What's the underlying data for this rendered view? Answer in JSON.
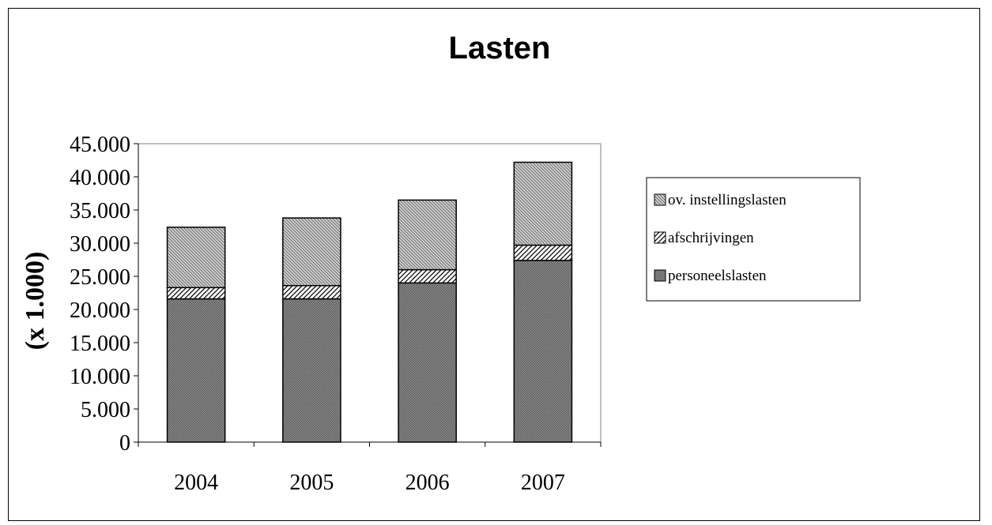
{
  "chart_data": {
    "type": "bar",
    "stacked": true,
    "title": "Lasten",
    "xlabel": "",
    "ylabel": "(x 1.000)",
    "categories": [
      "2004",
      "2005",
      "2006",
      "2007"
    ],
    "series": [
      {
        "name": "personeelslasten",
        "values": [
          21600,
          21600,
          24000,
          27400
        ],
        "color": "#808080"
      },
      {
        "name": "afschrijvingen",
        "values": [
          1700,
          2000,
          2000,
          2300
        ],
        "color": "#c0c0c0"
      },
      {
        "name": "ov. instellingslasten",
        "values": [
          9100,
          10200,
          10500,
          12500
        ],
        "color": "#a8a8a8"
      }
    ],
    "ylim": [
      0,
      45000
    ],
    "yticks": [
      "0",
      "5.000",
      "10.000",
      "15.000",
      "20.000",
      "25.000",
      "30.000",
      "35.000",
      "40.000",
      "45.000"
    ],
    "grid": false,
    "legend_position": "right"
  }
}
